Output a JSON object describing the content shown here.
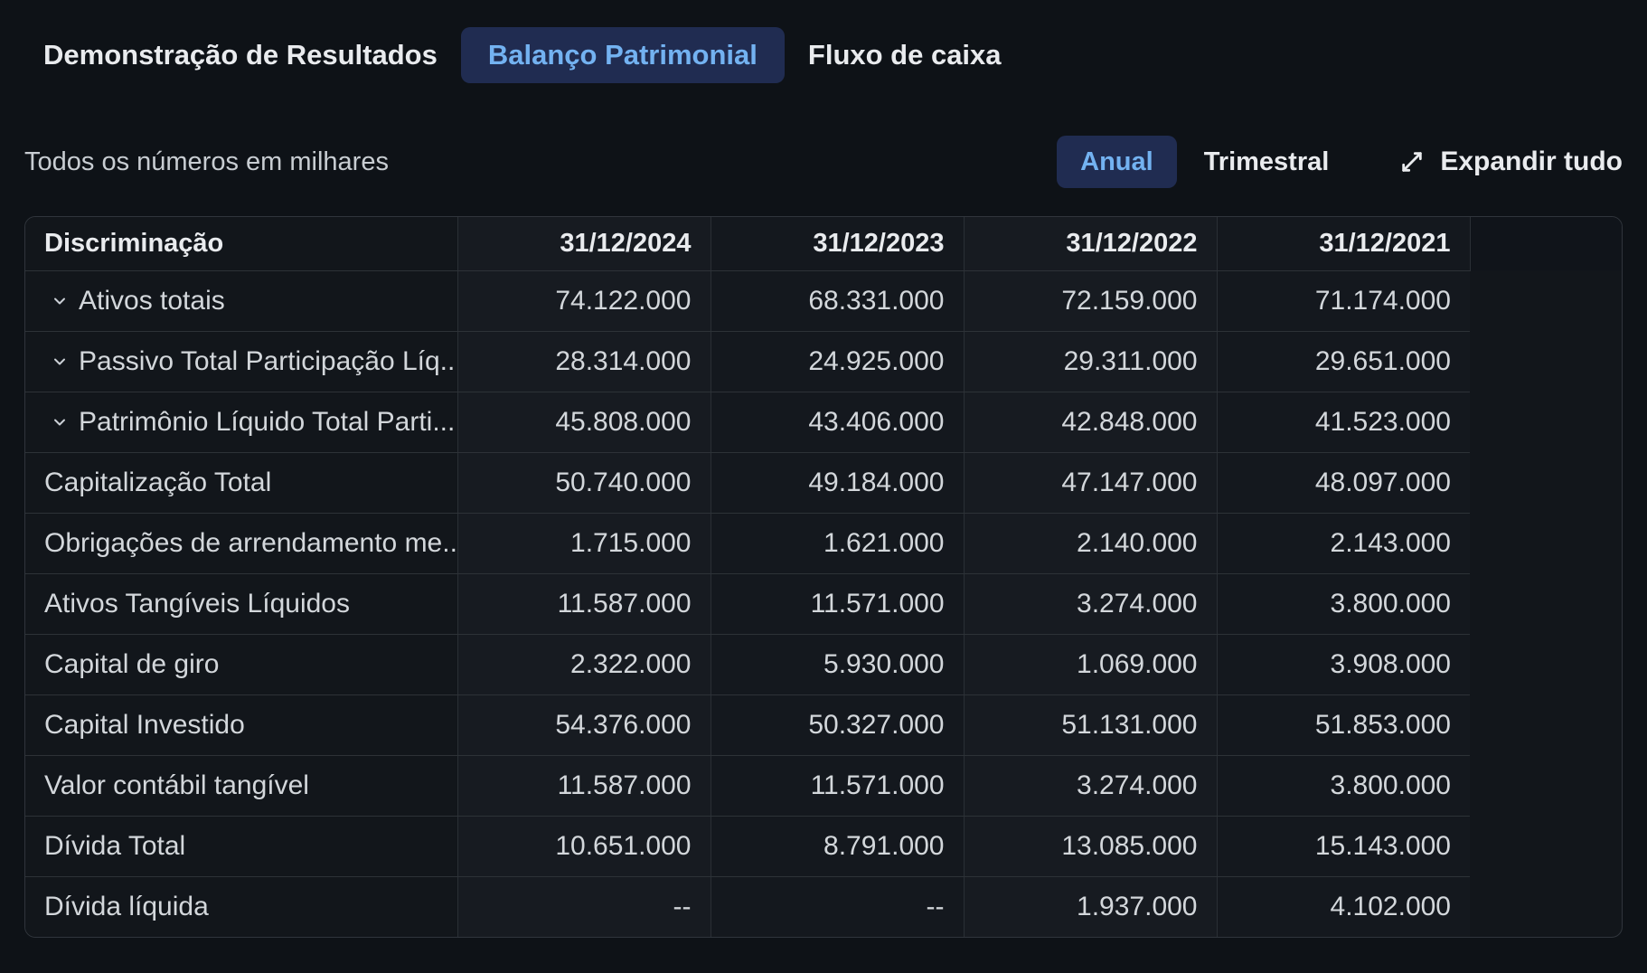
{
  "tabs": [
    {
      "label": "Demonstração de Resultados",
      "active": false
    },
    {
      "label": "Balanço Patrimonial",
      "active": true
    },
    {
      "label": "Fluxo de caixa",
      "active": false
    }
  ],
  "subheader": {
    "note": "Todos os números em milhares",
    "period_toggle": [
      {
        "label": "Anual",
        "active": true
      },
      {
        "label": "Trimestral",
        "active": false
      }
    ],
    "expand_all_label": "Expandir tudo"
  },
  "table": {
    "header": [
      "Discriminação",
      "31/12/2024",
      "31/12/2023",
      "31/12/2022",
      "31/12/2021"
    ],
    "rows": [
      {
        "label": "Ativos totais",
        "expandable": true,
        "values": [
          "74.122.000",
          "68.331.000",
          "72.159.000",
          "71.174.000"
        ]
      },
      {
        "label": "Passivo Total Participação Líq...",
        "expandable": true,
        "values": [
          "28.314.000",
          "24.925.000",
          "29.311.000",
          "29.651.000"
        ]
      },
      {
        "label": "Patrimônio Líquido Total Parti...",
        "expandable": true,
        "values": [
          "45.808.000",
          "43.406.000",
          "42.848.000",
          "41.523.000"
        ]
      },
      {
        "label": "Capitalização Total",
        "expandable": false,
        "values": [
          "50.740.000",
          "49.184.000",
          "47.147.000",
          "48.097.000"
        ]
      },
      {
        "label": "Obrigações de arrendamento me...",
        "expandable": false,
        "values": [
          "1.715.000",
          "1.621.000",
          "2.140.000",
          "2.143.000"
        ]
      },
      {
        "label": "Ativos Tangíveis Líquidos",
        "expandable": false,
        "values": [
          "11.587.000",
          "11.571.000",
          "3.274.000",
          "3.800.000"
        ]
      },
      {
        "label": "Capital de giro",
        "expandable": false,
        "values": [
          "2.322.000",
          "5.930.000",
          "1.069.000",
          "3.908.000"
        ]
      },
      {
        "label": "Capital Investido",
        "expandable": false,
        "values": [
          "54.376.000",
          "50.327.000",
          "51.131.000",
          "51.853.000"
        ]
      },
      {
        "label": "Valor contábil tangível",
        "expandable": false,
        "values": [
          "11.587.000",
          "11.571.000",
          "3.274.000",
          "3.800.000"
        ]
      },
      {
        "label": "Dívida Total",
        "expandable": false,
        "values": [
          "10.651.000",
          "8.791.000",
          "13.085.000",
          "15.143.000"
        ]
      },
      {
        "label": "Dívida líquida",
        "expandable": false,
        "values": [
          "--",
          "--",
          "1.937.000",
          "4.102.000"
        ]
      }
    ]
  },
  "colors": {
    "accent_blue": "#73b2f1",
    "accent_navy": "#202c51",
    "page_background": "#0e1217"
  }
}
